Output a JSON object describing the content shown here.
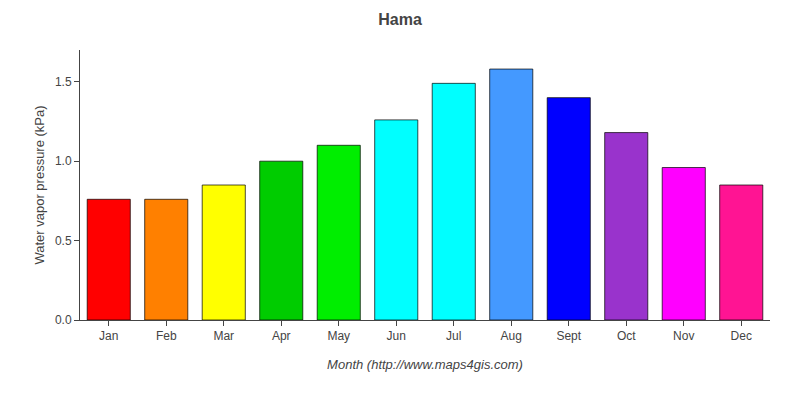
{
  "chart_data": {
    "type": "bar",
    "title": "Hama",
    "xlabel": "Month (http://www.maps4gis.com)",
    "ylabel": "Water vapor pressure (kPa)",
    "categories": [
      "Jan",
      "Feb",
      "Mar",
      "Apr",
      "May",
      "Jun",
      "Jul",
      "Aug",
      "Sept",
      "Oct",
      "Nov",
      "Dec"
    ],
    "values": [
      0.76,
      0.76,
      0.85,
      1.0,
      1.1,
      1.26,
      1.49,
      1.58,
      1.4,
      1.18,
      0.96,
      0.85
    ],
    "colors": [
      "#FF0000",
      "#FF8000",
      "#FFFF00",
      "#00CC00",
      "#00EE00",
      "#00FFFF",
      "#00FFFF",
      "#4499FF",
      "#0000FF",
      "#9933CC",
      "#FF00FF",
      "#FF1493"
    ],
    "ylim": [
      0,
      1.7
    ],
    "yticks": [
      {
        "value": 0,
        "label": "0.0"
      },
      0.5,
      {
        "value": 1,
        "label": "1.0"
      },
      1.5
    ],
    "grid": false
  }
}
